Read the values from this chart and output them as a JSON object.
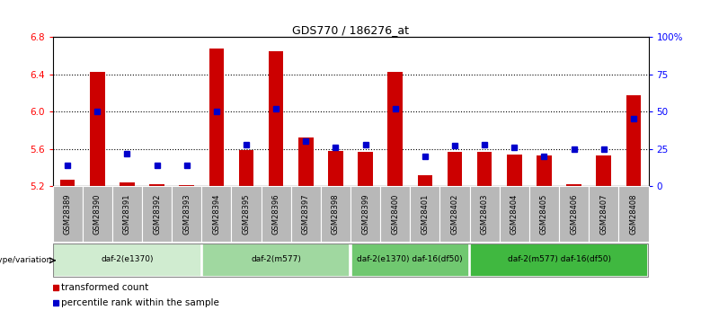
{
  "title": "GDS770 / 186276_at",
  "samples": [
    "GSM28389",
    "GSM28390",
    "GSM28391",
    "GSM28392",
    "GSM28393",
    "GSM28394",
    "GSM28395",
    "GSM28396",
    "GSM28397",
    "GSM28398",
    "GSM28399",
    "GSM28400",
    "GSM28401",
    "GSM28402",
    "GSM28403",
    "GSM28404",
    "GSM28405",
    "GSM28406",
    "GSM28407",
    "GSM28408"
  ],
  "transformed_count": [
    5.27,
    6.43,
    5.24,
    5.22,
    5.21,
    6.68,
    5.59,
    6.65,
    5.72,
    5.58,
    5.57,
    6.43,
    5.32,
    5.57,
    5.57,
    5.54,
    5.53,
    5.22,
    5.53,
    6.18
  ],
  "percentile_rank": [
    14,
    50,
    22,
    14,
    14,
    50,
    28,
    52,
    30,
    26,
    28,
    52,
    20,
    27,
    28,
    26,
    20,
    25,
    25,
    45
  ],
  "ylim_left": [
    5.2,
    6.8
  ],
  "ylim_right": [
    0,
    100
  ],
  "yticks_left": [
    5.2,
    5.6,
    6.0,
    6.4,
    6.8
  ],
  "yticks_right": [
    0,
    25,
    50,
    75,
    100
  ],
  "ytick_labels_right": [
    "0",
    "25",
    "50",
    "75",
    "100%"
  ],
  "groups": [
    {
      "label": "daf-2(e1370)",
      "start": 0,
      "end": 4,
      "color": "#d0ecd0"
    },
    {
      "label": "daf-2(m577)",
      "start": 5,
      "end": 9,
      "color": "#a0d8a0"
    },
    {
      "label": "daf-2(e1370) daf-16(df50)",
      "start": 10,
      "end": 13,
      "color": "#70c870"
    },
    {
      "label": "daf-2(m577) daf-16(df50)",
      "start": 14,
      "end": 19,
      "color": "#40b840"
    }
  ],
  "bar_color": "#cc0000",
  "dot_color": "#0000cc",
  "baseline": 5.2,
  "legend_items": [
    "transformed count",
    "percentile rank within the sample"
  ],
  "genotype_label": "genotype/variation",
  "tick_bg_color": "#b8b8b8"
}
